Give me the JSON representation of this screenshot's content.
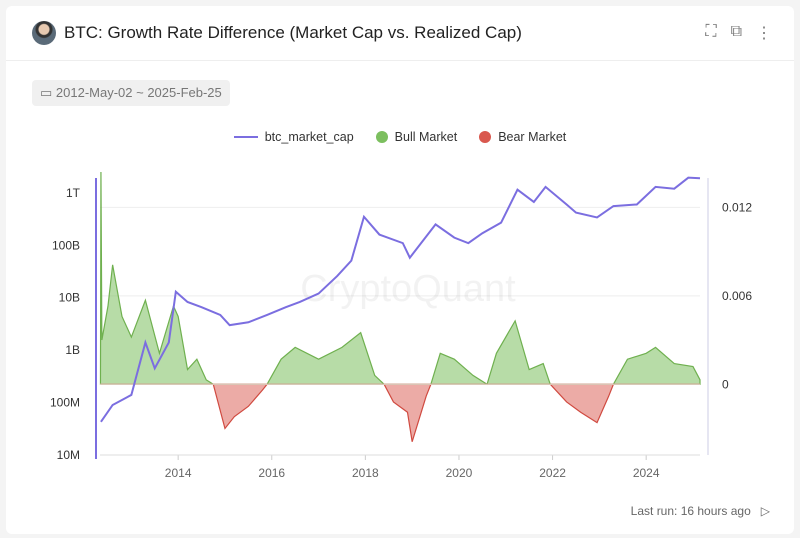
{
  "header": {
    "title": "BTC: Growth Rate Difference (Market Cap vs. Realized Cap)",
    "icons": [
      "expand-icon",
      "external-link-icon",
      "more-vertical-icon"
    ]
  },
  "date_range": "2012-May-02 ~ 2025-Feb-25",
  "footer": {
    "last_run": "Last run: 16 hours ago"
  },
  "watermark": "CryptoQuant",
  "colors": {
    "market_cap": "#7b6ee0",
    "bull": "#7cbf5f",
    "bear": "#d9584e"
  },
  "chart_data": {
    "type": "line+area",
    "legend": [
      "btc_market_cap",
      "Bull Market",
      "Bear Market"
    ],
    "legend_position": "top",
    "x_ticks": [
      "2014",
      "2016",
      "2018",
      "2020",
      "2022",
      "2024"
    ],
    "xlim": [
      2012.33,
      2025.15
    ],
    "left_axis": {
      "scale": "log",
      "ticks": [
        "10M",
        "100M",
        "1B",
        "10B",
        "100B",
        "1T"
      ],
      "tick_values": [
        10000000.0,
        100000000.0,
        1000000000.0,
        10000000000.0,
        100000000000.0,
        1000000000000.0
      ],
      "ylim": [
        10000000.0,
        2500000000000.0
      ]
    },
    "right_axis": {
      "ticks": [
        "0",
        "0.006",
        "0.012"
      ],
      "tick_values": [
        0,
        0.006,
        0.012
      ],
      "ylim": [
        -0.0048,
        0.0144
      ]
    },
    "market_cap": [
      [
        2012.35,
        43000000.0
      ],
      [
        2012.6,
        90000000.0
      ],
      [
        2013.0,
        140000000.0
      ],
      [
        2013.3,
        1400000000.0
      ],
      [
        2013.5,
        450000000.0
      ],
      [
        2013.8,
        1400000000.0
      ],
      [
        2013.95,
        13000000000.0
      ],
      [
        2014.2,
        8300000000.0
      ],
      [
        2014.5,
        6600000000.0
      ],
      [
        2014.9,
        4700000000.0
      ],
      [
        2015.1,
        3000000000.0
      ],
      [
        2015.5,
        3400000000.0
      ],
      [
        2015.9,
        4700000000.0
      ],
      [
        2016.3,
        6600000000.0
      ],
      [
        2016.6,
        8300000000.0
      ],
      [
        2017.0,
        12000000000.0
      ],
      [
        2017.4,
        26000000000.0
      ],
      [
        2017.7,
        51000000000.0
      ],
      [
        2017.97,
        350000000000.0
      ],
      [
        2018.3,
        160000000000.0
      ],
      [
        2018.8,
        110000000000.0
      ],
      [
        2018.95,
        58000000000.0
      ],
      [
        2019.5,
        250000000000.0
      ],
      [
        2019.9,
        140000000000.0
      ],
      [
        2020.2,
        110000000000.0
      ],
      [
        2020.5,
        170000000000.0
      ],
      [
        2020.9,
        270000000000.0
      ],
      [
        2021.25,
        1150000000000.0
      ],
      [
        2021.6,
        670000000000.0
      ],
      [
        2021.85,
        1300000000000.0
      ],
      [
        2022.3,
        600000000000.0
      ],
      [
        2022.5,
        420000000000.0
      ],
      [
        2022.95,
        340000000000.0
      ],
      [
        2023.3,
        560000000000.0
      ],
      [
        2023.8,
        600000000000.0
      ],
      [
        2024.2,
        1300000000000.0
      ],
      [
        2024.6,
        1200000000000.0
      ],
      [
        2024.9,
        1950000000000.0
      ],
      [
        2025.15,
        1900000000000.0
      ]
    ],
    "growth_diff": [
      [
        2012.34,
        0
      ],
      [
        2012.35,
        0.0144
      ],
      [
        2012.37,
        0.003
      ],
      [
        2012.5,
        0.0053
      ],
      [
        2012.6,
        0.0081
      ],
      [
        2012.8,
        0.0046
      ],
      [
        2013.0,
        0.0032
      ],
      [
        2013.3,
        0.0057
      ],
      [
        2013.6,
        0.0021
      ],
      [
        2013.9,
        0.0053
      ],
      [
        2014.0,
        0.0046
      ],
      [
        2014.2,
        0.001
      ],
      [
        2014.4,
        0.0017
      ],
      [
        2014.6,
        0.0003
      ],
      [
        2014.75,
        0
      ],
      [
        2015.0,
        -0.003
      ],
      [
        2015.2,
        -0.0022
      ],
      [
        2015.5,
        -0.0015
      ],
      [
        2015.8,
        -0.0004
      ],
      [
        2015.9,
        0
      ],
      [
        2016.2,
        0.0017
      ],
      [
        2016.5,
        0.0025
      ],
      [
        2017.0,
        0.0017
      ],
      [
        2017.5,
        0.0025
      ],
      [
        2017.9,
        0.0035
      ],
      [
        2018.2,
        0.0006
      ],
      [
        2018.4,
        0
      ],
      [
        2018.6,
        -0.0012
      ],
      [
        2018.9,
        -0.0019
      ],
      [
        2019.0,
        -0.0039
      ],
      [
        2019.3,
        -0.0008
      ],
      [
        2019.4,
        0
      ],
      [
        2019.6,
        0.0021
      ],
      [
        2019.9,
        0.0017
      ],
      [
        2020.3,
        0.0006
      ],
      [
        2020.6,
        0
      ],
      [
        2020.8,
        0.0021
      ],
      [
        2021.2,
        0.0043
      ],
      [
        2021.5,
        0.001
      ],
      [
        2021.8,
        0.0014
      ],
      [
        2021.95,
        0
      ],
      [
        2022.3,
        -0.0012
      ],
      [
        2022.6,
        -0.0019
      ],
      [
        2022.95,
        -0.0026
      ],
      [
        2023.2,
        -0.0008
      ],
      [
        2023.3,
        0
      ],
      [
        2023.6,
        0.0017
      ],
      [
        2024.0,
        0.0021
      ],
      [
        2024.2,
        0.0025
      ],
      [
        2024.6,
        0.0014
      ],
      [
        2025.0,
        0.0012
      ],
      [
        2025.15,
        0.0003
      ]
    ]
  }
}
